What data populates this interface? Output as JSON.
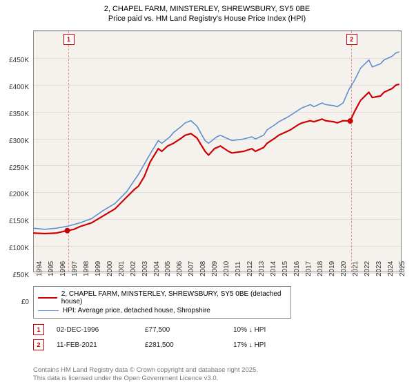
{
  "title_line1": "2, CHAPEL FARM, MINSTERLEY, SHREWSBURY, SY5 0BE",
  "title_line2": "Price paid vs. HM Land Registry's House Price Index (HPI)",
  "chart": {
    "type": "line",
    "background_color": "#f5f2ee",
    "grid_color": "#e0ddd8",
    "border_color": "#888888",
    "ylim": [
      0,
      450000
    ],
    "xlim": [
      1994,
      2025.5
    ],
    "yticks": [
      0,
      50000,
      100000,
      150000,
      200000,
      250000,
      300000,
      350000,
      400000,
      450000
    ],
    "ytick_labels": [
      "£0",
      "£50K",
      "£100K",
      "£150K",
      "£200K",
      "£250K",
      "£300K",
      "£350K",
      "£400K",
      "£450K"
    ],
    "xticks": [
      1994,
      1995,
      1996,
      1997,
      1998,
      1999,
      2000,
      2001,
      2002,
      2003,
      2004,
      2005,
      2006,
      2007,
      2008,
      2009,
      2010,
      2011,
      2012,
      2013,
      2014,
      2015,
      2016,
      2017,
      2018,
      2019,
      2020,
      2021,
      2022,
      2023,
      2024,
      2025
    ],
    "label_fontsize": 10,
    "title_fontsize": 11,
    "series": [
      {
        "name": "price_paid",
        "color": "#cc0000",
        "width": 2.2,
        "data": [
          [
            1994,
            73000
          ],
          [
            1995,
            72000
          ],
          [
            1996,
            73000
          ],
          [
            1996.92,
            77500
          ],
          [
            1997.5,
            80000
          ],
          [
            1998,
            85000
          ],
          [
            1999,
            92000
          ],
          [
            2000,
            105000
          ],
          [
            2001,
            118000
          ],
          [
            2002,
            140000
          ],
          [
            2002.7,
            155000
          ],
          [
            2003,
            160000
          ],
          [
            2003.5,
            178000
          ],
          [
            2004,
            205000
          ],
          [
            2004.7,
            230000
          ],
          [
            2005,
            225000
          ],
          [
            2005.5,
            235000
          ],
          [
            2006,
            240000
          ],
          [
            2006.7,
            250000
          ],
          [
            2007,
            255000
          ],
          [
            2007.5,
            258000
          ],
          [
            2008,
            250000
          ],
          [
            2008.7,
            225000
          ],
          [
            2009,
            218000
          ],
          [
            2009.5,
            230000
          ],
          [
            2010,
            235000
          ],
          [
            2010.7,
            225000
          ],
          [
            2011,
            222000
          ],
          [
            2012,
            225000
          ],
          [
            2012.7,
            230000
          ],
          [
            2013,
            225000
          ],
          [
            2013.7,
            232000
          ],
          [
            2014,
            240000
          ],
          [
            2014.7,
            250000
          ],
          [
            2015,
            255000
          ],
          [
            2015.7,
            262000
          ],
          [
            2016,
            265000
          ],
          [
            2016.7,
            275000
          ],
          [
            2017,
            278000
          ],
          [
            2017.7,
            282000
          ],
          [
            2018,
            280000
          ],
          [
            2018.7,
            285000
          ],
          [
            2019,
            282000
          ],
          [
            2019.7,
            280000
          ],
          [
            2020,
            278000
          ],
          [
            2020.5,
            282000
          ],
          [
            2021.11,
            281500
          ],
          [
            2021.5,
            300000
          ],
          [
            2022,
            320000
          ],
          [
            2022.7,
            335000
          ],
          [
            2023,
            325000
          ],
          [
            2023.7,
            328000
          ],
          [
            2024,
            335000
          ],
          [
            2024.7,
            342000
          ],
          [
            2025,
            348000
          ],
          [
            2025.3,
            350000
          ]
        ]
      },
      {
        "name": "hpi",
        "color": "#5b8fcf",
        "width": 1.6,
        "data": [
          [
            1994,
            82000
          ],
          [
            1995,
            80000
          ],
          [
            1996,
            82000
          ],
          [
            1997,
            86000
          ],
          [
            1998,
            92000
          ],
          [
            1999,
            100000
          ],
          [
            2000,
            115000
          ],
          [
            2001,
            128000
          ],
          [
            2002,
            150000
          ],
          [
            2003,
            182000
          ],
          [
            2004,
            220000
          ],
          [
            2004.7,
            245000
          ],
          [
            2005,
            240000
          ],
          [
            2005.7,
            252000
          ],
          [
            2006,
            260000
          ],
          [
            2006.7,
            272000
          ],
          [
            2007,
            278000
          ],
          [
            2007.5,
            282000
          ],
          [
            2008,
            272000
          ],
          [
            2008.7,
            245000
          ],
          [
            2009,
            240000
          ],
          [
            2009.7,
            252000
          ],
          [
            2010,
            255000
          ],
          [
            2010.7,
            248000
          ],
          [
            2011,
            245000
          ],
          [
            2012,
            248000
          ],
          [
            2012.7,
            252000
          ],
          [
            2013,
            248000
          ],
          [
            2013.7,
            255000
          ],
          [
            2014,
            265000
          ],
          [
            2014.7,
            275000
          ],
          [
            2015,
            280000
          ],
          [
            2015.7,
            288000
          ],
          [
            2016,
            292000
          ],
          [
            2016.7,
            302000
          ],
          [
            2017,
            306000
          ],
          [
            2017.7,
            312000
          ],
          [
            2018,
            308000
          ],
          [
            2018.7,
            315000
          ],
          [
            2019,
            312000
          ],
          [
            2019.7,
            310000
          ],
          [
            2020,
            308000
          ],
          [
            2020.5,
            315000
          ],
          [
            2021,
            340000
          ],
          [
            2021.5,
            358000
          ],
          [
            2022,
            380000
          ],
          [
            2022.7,
            395000
          ],
          [
            2023,
            382000
          ],
          [
            2023.7,
            388000
          ],
          [
            2024,
            395000
          ],
          [
            2024.7,
            402000
          ],
          [
            2025,
            408000
          ],
          [
            2025.3,
            410000
          ]
        ]
      }
    ],
    "markers": [
      {
        "num": "1",
        "year": 1996.92,
        "value": 77500
      },
      {
        "num": "2",
        "year": 2021.11,
        "value": 281500
      }
    ],
    "sale_dot": {
      "fill": "#cc0000",
      "radius": 4
    }
  },
  "legend": {
    "items": [
      {
        "color": "#cc0000",
        "width": 2.2,
        "label": "2, CHAPEL FARM, MINSTERLEY, SHREWSBURY, SY5 0BE (detached house)"
      },
      {
        "color": "#5b8fcf",
        "width": 1.6,
        "label": "HPI: Average price, detached house, Shropshire"
      }
    ]
  },
  "sales": [
    {
      "num": "1",
      "date": "02-DEC-1996",
      "price": "£77,500",
      "delta": "10% ↓ HPI"
    },
    {
      "num": "2",
      "date": "11-FEB-2021",
      "price": "£281,500",
      "delta": "17% ↓ HPI"
    }
  ],
  "footer_line1": "Contains HM Land Registry data © Crown copyright and database right 2025.",
  "footer_line2": "This data is licensed under the Open Government Licence v3.0."
}
